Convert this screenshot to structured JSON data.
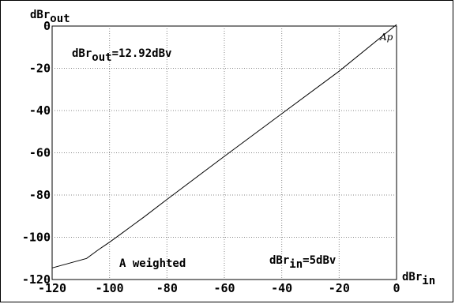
{
  "chart_data": {
    "type": "line",
    "ylabel_main": "dBr",
    "ylabel_sub": "out",
    "xlabel_main": "dBr",
    "xlabel_sub": "in",
    "xlim": [
      -120,
      0
    ],
    "ylim": [
      -120,
      0
    ],
    "x_ticks": [
      -120,
      -100,
      -80,
      -60,
      -40,
      -20,
      0
    ],
    "y_ticks": [
      0,
      -20,
      -40,
      -60,
      -80,
      -100,
      -120
    ],
    "x_tick_labels": [
      "-120",
      "-100",
      "-80",
      "-60",
      "-40",
      "-20",
      "0"
    ],
    "y_tick_labels": [
      "0",
      "-20",
      "-40",
      "-60",
      "-80",
      "-100",
      "-120"
    ],
    "grid": true,
    "series": [
      {
        "x": [
          -120,
          -112,
          -108,
          -104,
          -100,
          -96,
          -92,
          -88,
          -80,
          -60,
          -40,
          -20,
          0
        ],
        "y": [
          -114.5,
          -111.5,
          -110,
          -106,
          -102.3,
          -98.4,
          -94.4,
          -90.4,
          -82.1,
          -61.7,
          -41.5,
          -21.4,
          0.7
        ]
      }
    ],
    "annotations": {
      "ref_out_main": "dBr",
      "ref_out_sub": "out",
      "ref_out_value": "=12.92dBv",
      "weighting": "A weighted",
      "ref_in_main": "dBr",
      "ref_in_sub": "in",
      "ref_in_value": "=5dBv"
    },
    "logo": "Ap"
  }
}
